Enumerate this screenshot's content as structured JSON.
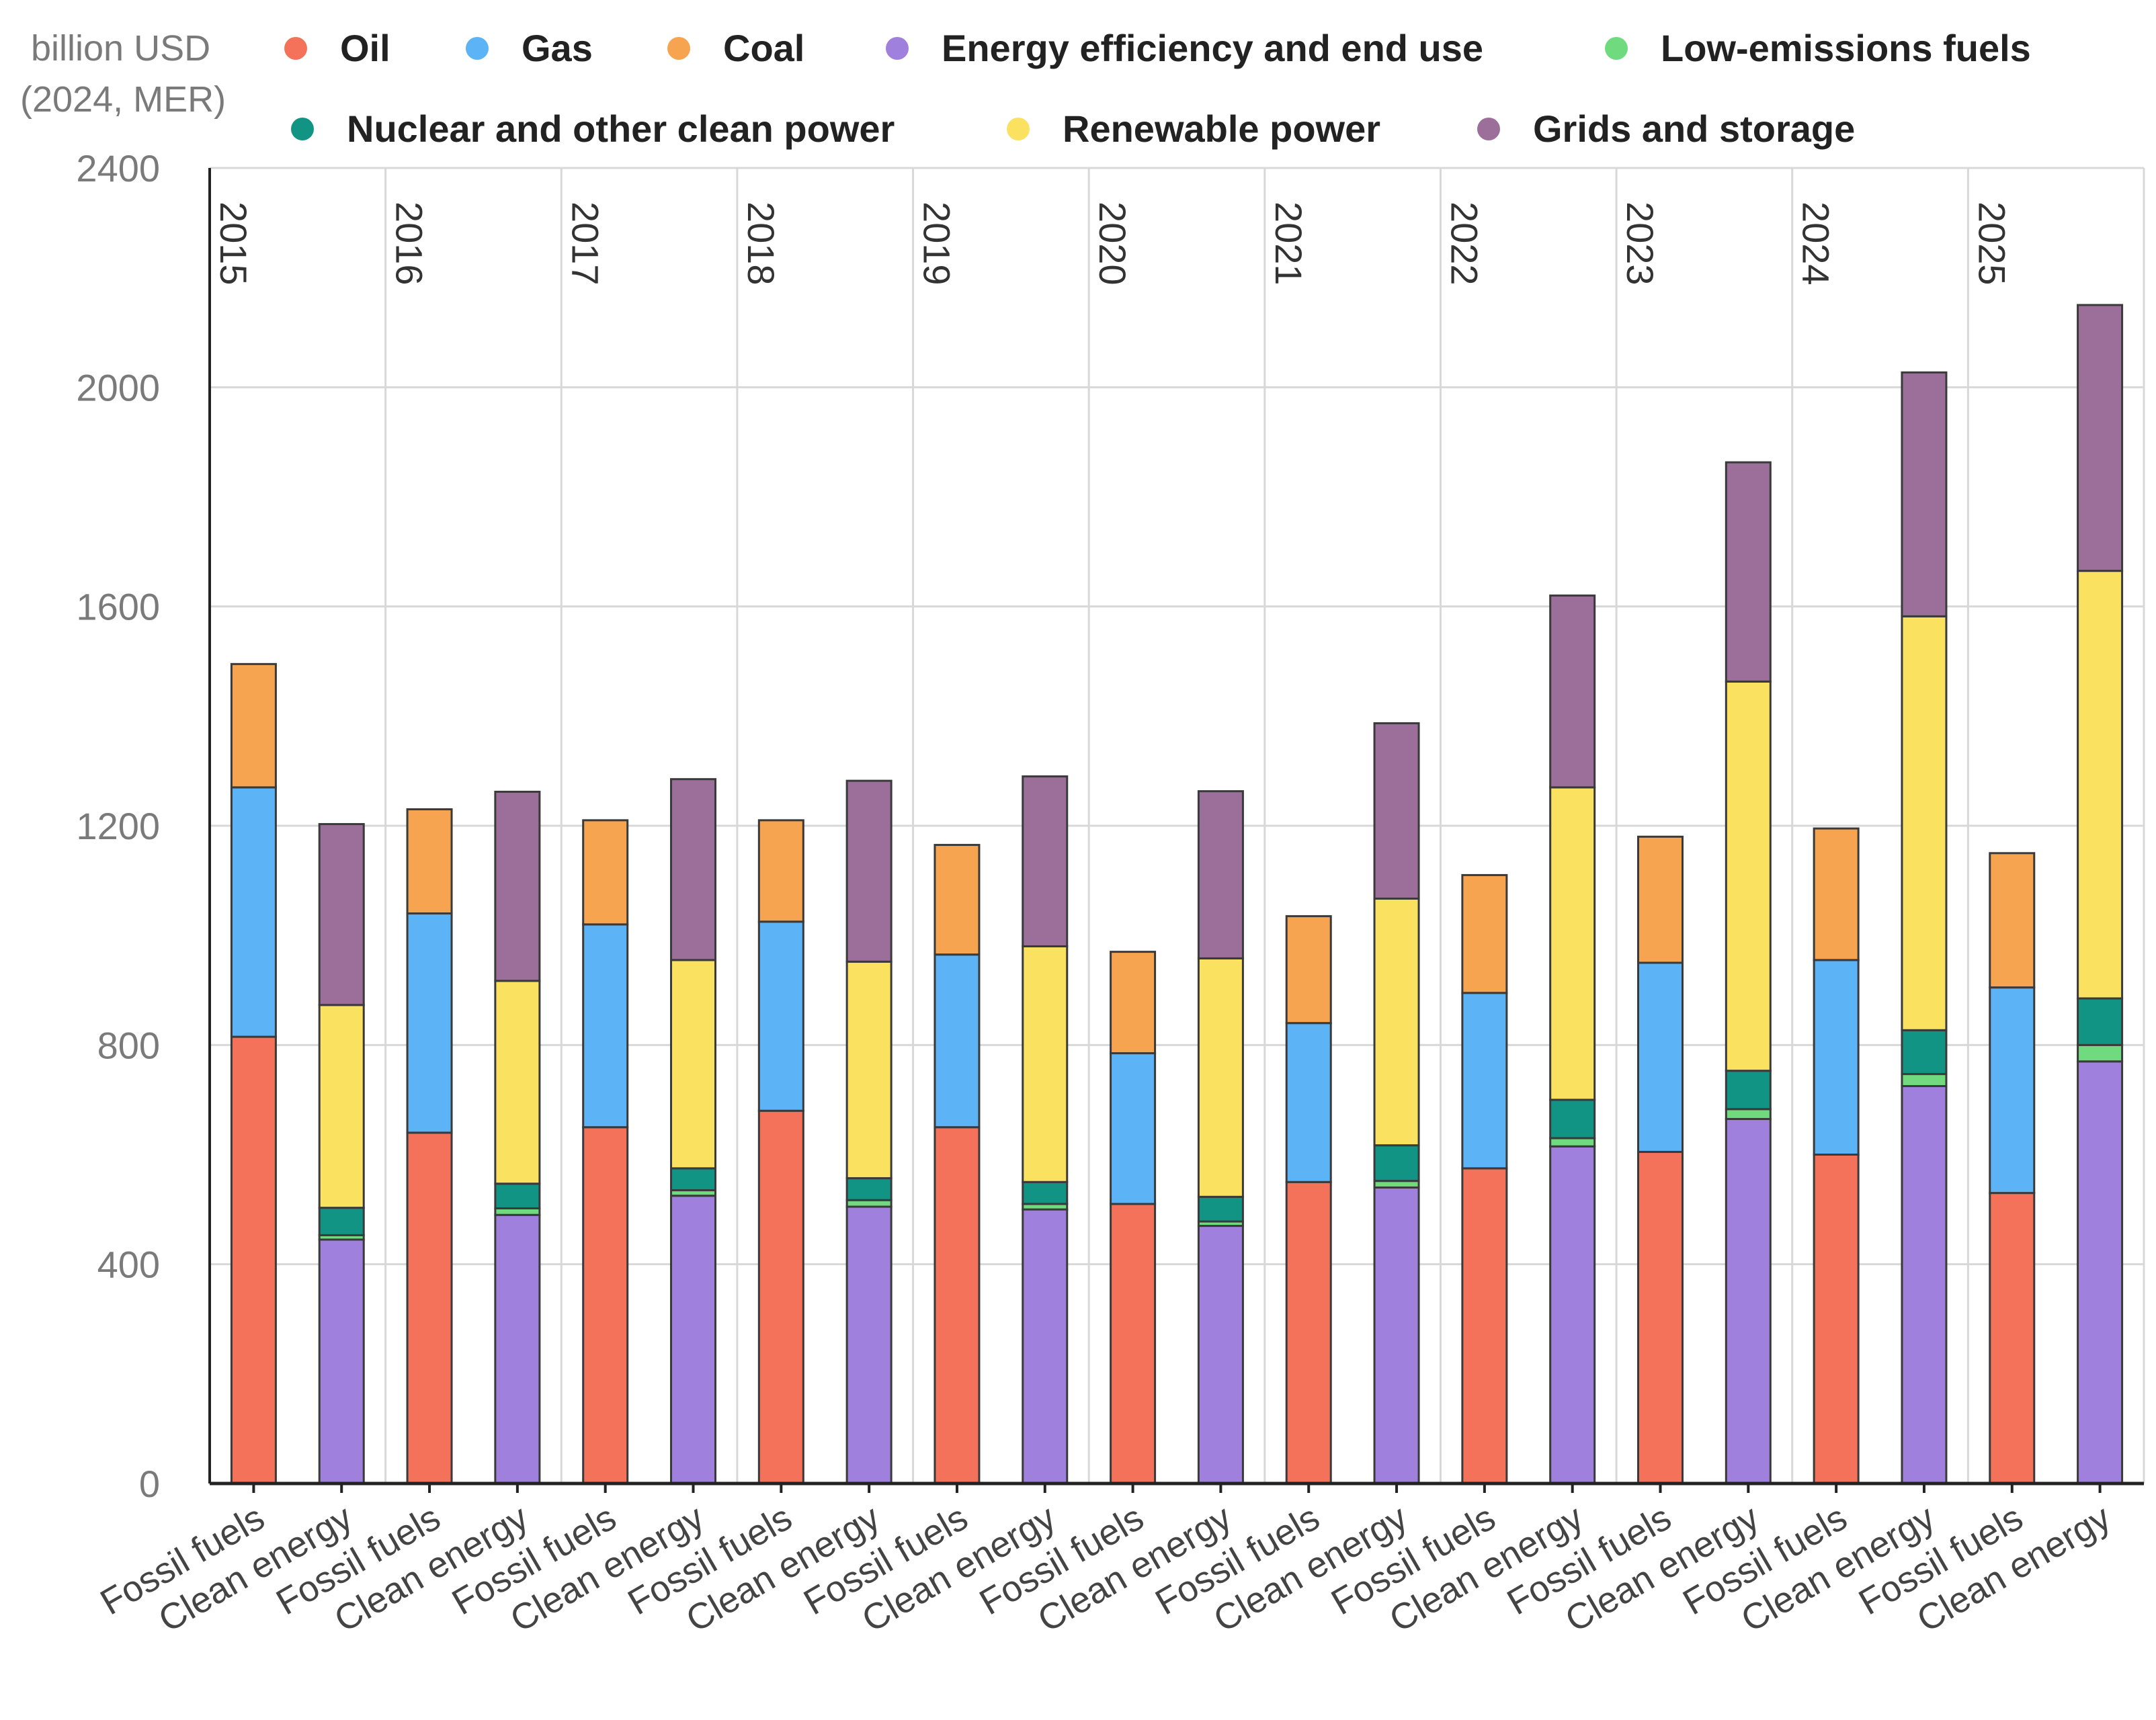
{
  "chart_data": {
    "type": "bar",
    "stacked": true,
    "unit_label_line1": "billion USD",
    "unit_label_line2": "(2024, MER)",
    "ylim": [
      0,
      2400
    ],
    "yticks": [
      "0",
      "400",
      "800",
      "1200",
      "1600",
      "2000",
      "2400"
    ],
    "grid": true,
    "legend_position": "top",
    "years": [
      "2015",
      "2016",
      "2017",
      "2018",
      "2019",
      "2020",
      "2021",
      "2022",
      "2023",
      "2024",
      "2025"
    ],
    "group_labels": [
      "Fossil fuels",
      "Clean energy"
    ],
    "series": [
      {
        "key": "oil",
        "name": "Oil",
        "color": "#f4715a",
        "group": "Fossil fuels",
        "values": [
          815,
          640,
          650,
          680,
          650,
          510,
          550,
          575,
          605,
          600,
          530
        ]
      },
      {
        "key": "gas",
        "name": "Gas",
        "color": "#5cb3f5",
        "group": "Fossil fuels",
        "values": [
          455,
          400,
          370,
          345,
          315,
          275,
          290,
          320,
          345,
          355,
          375
        ]
      },
      {
        "key": "coal",
        "name": "Coal",
        "color": "#f6a44f",
        "group": "Fossil fuels",
        "values": [
          225,
          190,
          190,
          185,
          200,
          185,
          195,
          215,
          230,
          240,
          245
        ]
      },
      {
        "key": "efficiency",
        "name": "Energy efficiency and end use",
        "color": "#9f80dc",
        "group": "Clean energy",
        "values": [
          445,
          490,
          525,
          505,
          500,
          470,
          540,
          615,
          665,
          725,
          770
        ]
      },
      {
        "key": "lowemissions",
        "name": "Low-emissions fuels",
        "color": "#6fdb7e",
        "group": "Clean energy",
        "values": [
          8,
          12,
          10,
          12,
          10,
          8,
          12,
          15,
          18,
          22,
          30
        ]
      },
      {
        "key": "nuclear",
        "name": "Nuclear and other clean power",
        "color": "#119484",
        "group": "Clean energy",
        "values": [
          50,
          45,
          40,
          40,
          40,
          45,
          65,
          70,
          70,
          80,
          85
        ]
      },
      {
        "key": "renewables",
        "name": "Renewable power",
        "color": "#fbe160",
        "group": "Clean energy",
        "values": [
          370,
          370,
          380,
          395,
          430,
          435,
          450,
          570,
          710,
          755,
          780
        ]
      },
      {
        "key": "grids",
        "name": "Grids and storage",
        "color": "#9b6f99",
        "group": "Clean energy",
        "values": [
          330,
          345,
          330,
          330,
          310,
          305,
          320,
          350,
          400,
          445,
          485
        ]
      }
    ]
  }
}
